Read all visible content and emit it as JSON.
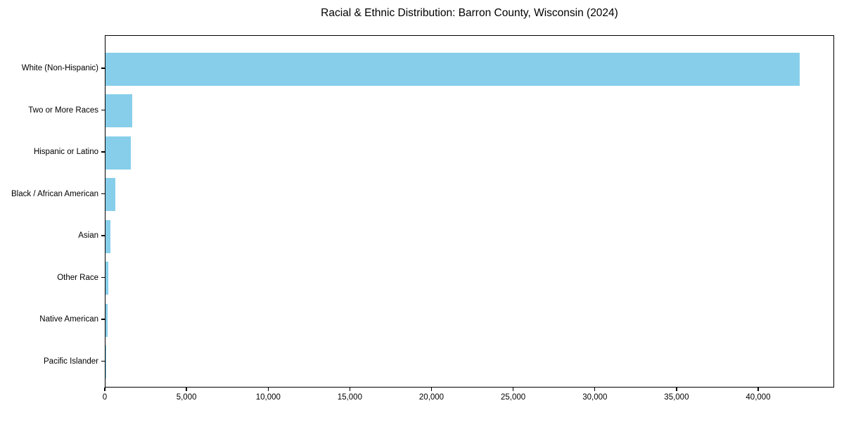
{
  "chart_data": {
    "type": "bar",
    "orientation": "horizontal",
    "title": "Racial & Ethnic Distribution: Barron County, Wisconsin (2024)",
    "categories": [
      "White (Non-Hispanic)",
      "Two or More Races",
      "Hispanic or Latino",
      "Black / African American",
      "Asian",
      "Other Race",
      "Native American",
      "Pacific Islander"
    ],
    "values": [
      42500,
      1620,
      1540,
      600,
      300,
      160,
      120,
      10
    ],
    "xlabel": "",
    "ylabel": "",
    "xlim": [
      0,
      44650
    ],
    "x_ticks": [
      0,
      5000,
      10000,
      15000,
      20000,
      25000,
      30000,
      35000,
      40000
    ],
    "x_tick_labels": [
      "0",
      "5,000",
      "10,000",
      "15,000",
      "20,000",
      "25,000",
      "30,000",
      "35,000",
      "40,000"
    ],
    "bar_color": "#87CEEB",
    "axis_color": "#000000",
    "background_color": "#ffffff",
    "grid": false,
    "legend": "none"
  }
}
